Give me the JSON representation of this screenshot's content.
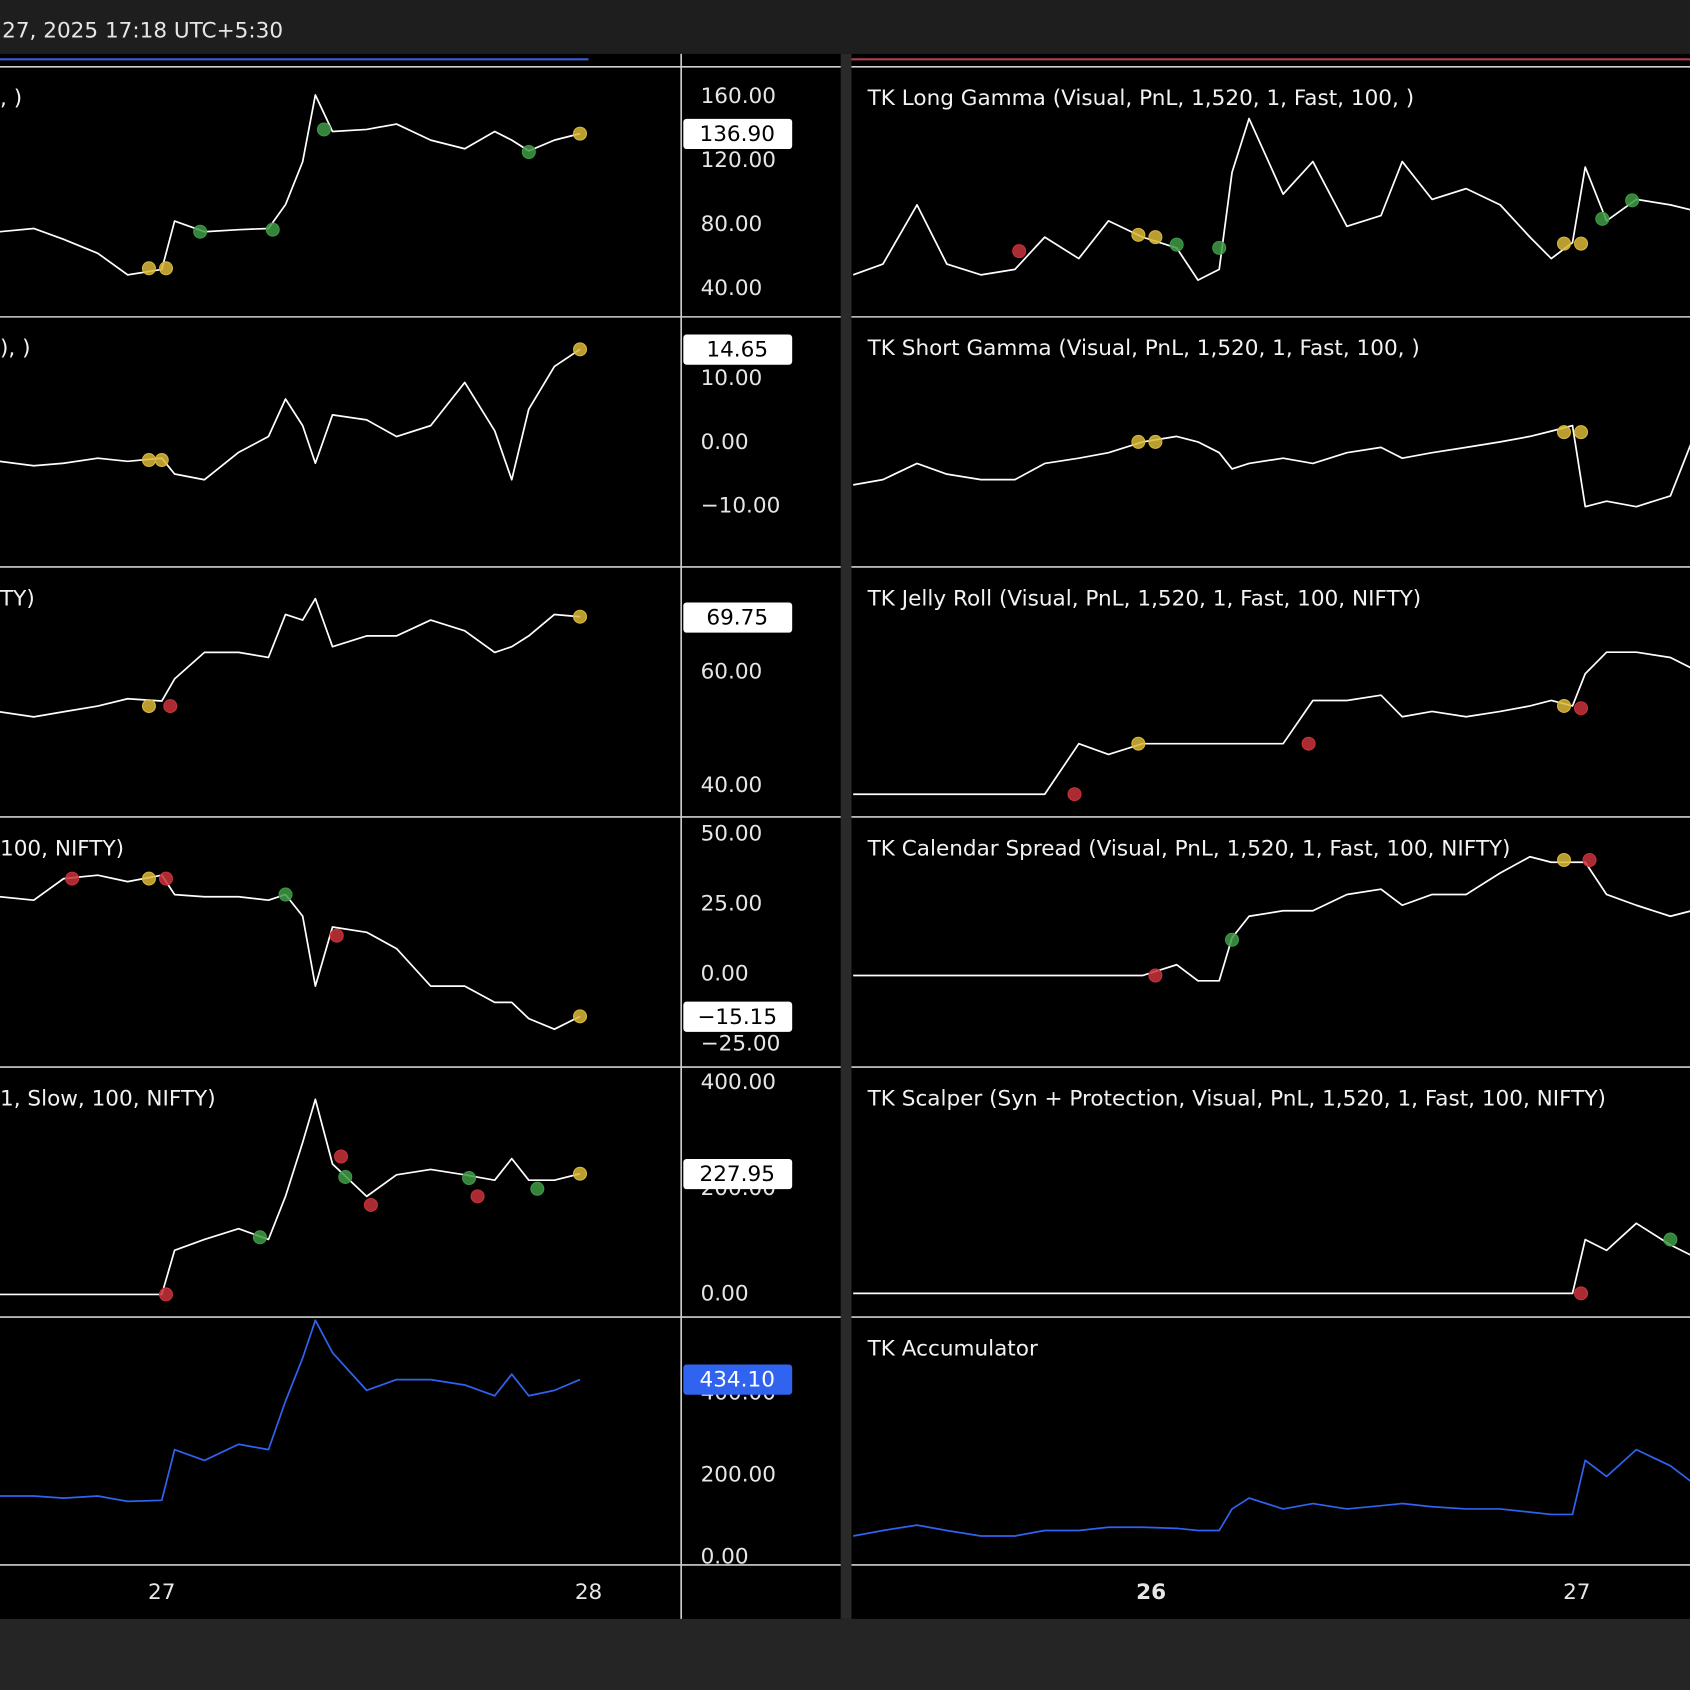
{
  "header": {
    "text": "27, 2025 17:18 UTC+5:30"
  },
  "chart_data": {
    "type": "line",
    "panes": [
      {
        "x": [
          26.62,
          26.7,
          26.77,
          26.85,
          26.92,
          27.0,
          27.03,
          27.1,
          27.18,
          27.25,
          27.29,
          27.33,
          27.36,
          27.4,
          27.48,
          27.55,
          27.63,
          27.71,
          27.78,
          27.82,
          27.86,
          27.92,
          27.98
        ],
        "xlim": [
          26.621,
          28.217
        ],
        "xticks": [
          27,
          28
        ],
        "panels": [
          {
            "title": ", )",
            "color": "#ffffff",
            "values": [
              75.7,
              77.7,
              71.0,
              62.2,
              48.7,
              52.1,
              82.4,
              75.7,
              77.0,
              77.7,
              92.6,
              119.5,
              161.3,
              138.4,
              139.7,
              143.1,
              133.0,
              127.6,
              138.4,
              133.0,
              126.3,
              133.0,
              137.1
            ],
            "ylim": [
              22.4,
              178.9
            ],
            "yticks": [
              {
                "value": 160,
                "label": "160.00"
              },
              {
                "value": 120,
                "label": "120.00"
              },
              {
                "value": 80,
                "label": "80.00"
              },
              {
                "value": 40,
                "label": "40.00"
              }
            ],
            "last_value": {
              "value": 136.9,
              "label": "136.90"
            },
            "markers": [
              {
                "x": 26.97,
                "y": 52.8,
                "color": "#d9b83a"
              },
              {
                "x": 27.01,
                "y": 52.8,
                "color": "#d9b83a"
              },
              {
                "x": 27.09,
                "y": 75.7,
                "color": "#3f9a45"
              },
              {
                "x": 27.26,
                "y": 77.0,
                "color": "#3f9a45"
              },
              {
                "x": 27.38,
                "y": 139.7,
                "color": "#3f9a45"
              },
              {
                "x": 27.86,
                "y": 125.6,
                "color": "#3f9a45"
              },
              {
                "x": 27.98,
                "y": 137.1,
                "color": "#d9b83a"
              }
            ]
          },
          {
            "title": "), )",
            "color": "#ffffff",
            "values": [
              -2.9,
              -3.6,
              -3.2,
              -2.4,
              -2.9,
              -2.4,
              -4.9,
              -5.8,
              -1.5,
              1.0,
              6.9,
              2.7,
              -3.2,
              4.4,
              3.6,
              1.0,
              2.7,
              9.5,
              1.9,
              -5.8,
              5.3,
              12.0,
              14.7
            ],
            "ylim": [
              -19.5,
              19.8
            ],
            "yticks": [
              {
                "value": 10,
                "label": "10.00"
              },
              {
                "value": 0,
                "label": "0.00"
              },
              {
                "value": -10,
                "label": "−10.00"
              }
            ],
            "last_value": {
              "value": 14.65,
              "label": "14.65"
            },
            "markers": [
              {
                "x": 26.97,
                "y": -2.7,
                "color": "#d9b83a"
              },
              {
                "x": 27.0,
                "y": -2.7,
                "color": "#d9b83a"
              },
              {
                "x": 27.98,
                "y": 14.7,
                "color": "#d9b83a"
              }
            ]
          },
          {
            "title": "TY)",
            "color": "#ffffff",
            "values": [
              53.1,
              52.2,
              53.1,
              54.1,
              55.4,
              55.0,
              58.9,
              63.6,
              63.6,
              62.7,
              70.3,
              69.3,
              73.1,
              64.6,
              66.5,
              66.5,
              69.3,
              67.4,
              63.6,
              64.6,
              66.5,
              70.3,
              69.9
            ],
            "ylim": [
              34.5,
              78.7
            ],
            "yticks": [
              {
                "value": 60,
                "label": "60.00"
              },
              {
                "value": 40,
                "label": "40.00"
              }
            ],
            "last_value": {
              "value": 69.75,
              "label": "69.75"
            },
            "markers": [
              {
                "x": 26.97,
                "y": 54.1,
                "color": "#d9b83a"
              },
              {
                "x": 27.02,
                "y": 54.1,
                "color": "#c8323a"
              },
              {
                "x": 27.98,
                "y": 69.9,
                "color": "#d9b83a"
              }
            ]
          },
          {
            "title": "100, NIFTY)",
            "color": "#ffffff",
            "values": [
              27.7,
              26.5,
              34.2,
              35.4,
              33.1,
              35.4,
              28.5,
              27.7,
              27.7,
              26.5,
              28.5,
              20.8,
              -4.2,
              16.9,
              15.0,
              9.2,
              -4.2,
              -4.2,
              -10.0,
              -10.0,
              -15.8,
              -19.6,
              -15.0
            ],
            "ylim": [
              -33.1,
              56.2
            ],
            "yticks": [
              {
                "value": 50,
                "label": "50.00"
              },
              {
                "value": 25,
                "label": "25.00"
              },
              {
                "value": 0,
                "label": "0.00"
              },
              {
                "value": -25,
                "label": "−25.00"
              }
            ],
            "last_value": {
              "value": -15.15,
              "label": "−15.15"
            },
            "markers": [
              {
                "x": 26.79,
                "y": 34.2,
                "color": "#c8323a"
              },
              {
                "x": 26.97,
                "y": 34.2,
                "color": "#d9b83a"
              },
              {
                "x": 27.01,
                "y": 34.2,
                "color": "#c8323a"
              },
              {
                "x": 27.29,
                "y": 28.5,
                "color": "#3f9a45"
              },
              {
                "x": 27.41,
                "y": 13.8,
                "color": "#c8323a"
              },
              {
                "x": 27.98,
                "y": -15.0,
                "color": "#d9b83a"
              }
            ]
          },
          {
            "title": "1, Slow, 100, NIFTY)",
            "color": "#ffffff",
            "values": [
              0,
              0,
              0,
              0,
              0,
              0,
              83.7,
              104.1,
              124.5,
              104.1,
              185.7,
              287.8,
              369.4,
              246.9,
              185.7,
              226.5,
              236.7,
              226.5,
              216.3,
              257.1,
              216.3,
              216.3,
              228.6
            ],
            "ylim": [
              -42.9,
              430.6
            ],
            "yticks": [
              {
                "value": 400,
                "label": "400.00"
              },
              {
                "value": 200,
                "label": "200.00"
              },
              {
                "value": 0,
                "label": "0.00"
              }
            ],
            "last_value": {
              "value": 227.95,
              "label": "227.95"
            },
            "markers": [
              {
                "x": 27.01,
                "y": 0,
                "color": "#c8323a"
              },
              {
                "x": 27.23,
                "y": 108.2,
                "color": "#3f9a45"
              },
              {
                "x": 27.42,
                "y": 261.2,
                "color": "#c8323a"
              },
              {
                "x": 27.43,
                "y": 222.4,
                "color": "#3f9a45"
              },
              {
                "x": 27.49,
                "y": 169.4,
                "color": "#c8323a"
              },
              {
                "x": 27.72,
                "y": 220.4,
                "color": "#3f9a45"
              },
              {
                "x": 27.74,
                "y": 185.7,
                "color": "#c8323a"
              },
              {
                "x": 27.88,
                "y": 200,
                "color": "#3f9a45"
              },
              {
                "x": 27.98,
                "y": 228.6,
                "color": "#d9b83a"
              }
            ]
          },
          {
            "color": "#2f63f0",
            "values": [
              150,
              150,
              144.7,
              150,
              136.8,
              139.5,
              263.2,
              236.8,
              276.3,
              263.2,
              381.6,
              486.8,
              578.9,
              500,
              407.9,
              434.2,
              434.2,
              421.1,
              394.7,
              447.4,
              394.7,
              407.9,
              434.2
            ],
            "ylim": [
              -18.4,
              586.8
            ],
            "yticks": [
              {
                "value": 400,
                "label": "400.00"
              },
              {
                "value": 200,
                "label": "200.00"
              },
              {
                "value": 0,
                "label": "0.00"
              }
            ],
            "last_value": {
              "value": 434.1,
              "label": "434.10"
            }
          }
        ]
      },
      {
        "x": [
          25.3,
          25.37,
          25.45,
          25.52,
          25.6,
          25.68,
          25.75,
          25.83,
          25.9,
          25.98,
          26.06,
          26.11,
          26.16,
          26.19,
          26.23,
          26.31,
          26.38,
          26.46,
          26.54,
          26.59,
          26.66,
          26.74,
          26.82,
          26.89,
          26.94,
          26.99,
          27.02,
          27.07,
          27.14,
          27.22,
          27.27
        ],
        "xlim": [
          25.296,
          27.266
        ],
        "xticks": [
          26,
          27
        ],
        "panels": [
          {
            "title": "TK Long Gamma (Visual, PnL, 1,520, 1, Fast, 100, )",
            "color": "#ffffff",
            "ylim": [
              0,
              100
            ],
            "values": [
              16.8,
              21.1,
              44.8,
              21.1,
              16.8,
              19.0,
              31.9,
              23.3,
              38.4,
              31.9,
              27.6,
              14.7,
              19.0,
              57.8,
              79.3,
              49.1,
              62.1,
              36.2,
              40.5,
              62.1,
              47.0,
              51.3,
              44.8,
              31.9,
              23.3,
              29.7,
              59.9,
              38.4,
              47.0,
              44.8,
              42.7
            ],
            "markers": [
              {
                "x": 25.69,
                "y": 26.3,
                "color": "#c8323a"
              },
              {
                "x": 25.97,
                "y": 32.8,
                "color": "#d9b83a"
              },
              {
                "x": 26.01,
                "y": 31.9,
                "color": "#d9b83a"
              },
              {
                "x": 26.06,
                "y": 28.9,
                "color": "#3f9a45"
              },
              {
                "x": 26.16,
                "y": 27.6,
                "color": "#3f9a45"
              },
              {
                "x": 26.97,
                "y": 29.3,
                "color": "#d9b83a"
              },
              {
                "x": 27.01,
                "y": 29.3,
                "color": "#d9b83a"
              },
              {
                "x": 27.06,
                "y": 39.2,
                "color": "#3f9a45"
              },
              {
                "x": 27.13,
                "y": 46.6,
                "color": "#3f9a45"
              }
            ]
          },
          {
            "title": "TK Short Gamma (Visual, PnL, 1,520, 1, Fast, 100, )",
            "color": "#ffffff",
            "ylim": [
              0,
              100
            ],
            "values": [
              32.8,
              34.9,
              41.4,
              37.1,
              34.9,
              34.9,
              41.4,
              43.5,
              45.7,
              50.0,
              52.2,
              50.0,
              45.7,
              39.2,
              41.4,
              43.5,
              41.4,
              45.7,
              47.8,
              43.5,
              45.7,
              47.8,
              50.0,
              52.2,
              54.3,
              56.5,
              24.1,
              26.3,
              24.1,
              28.4,
              50.0
            ],
            "markers": [
              {
                "x": 25.97,
                "y": 50.0,
                "color": "#d9b83a"
              },
              {
                "x": 26.01,
                "y": 50.0,
                "color": "#d9b83a"
              },
              {
                "x": 26.97,
                "y": 53.9,
                "color": "#d9b83a"
              },
              {
                "x": 27.01,
                "y": 53.9,
                "color": "#d9b83a"
              }
            ]
          },
          {
            "title": "TK Jelly Roll (Visual, PnL, 1,520, 1, Fast, 100, NIFTY)",
            "color": "#ffffff",
            "ylim": [
              0,
              100
            ],
            "values": [
              9.1,
              9.1,
              9.1,
              9.1,
              9.1,
              9.1,
              9.1,
              29.3,
              25.0,
              29.3,
              29.3,
              29.3,
              29.3,
              29.3,
              29.3,
              29.3,
              46.6,
              46.6,
              48.7,
              40.1,
              42.2,
              40.1,
              42.2,
              44.4,
              46.6,
              44.4,
              57.3,
              65.9,
              65.9,
              63.8,
              59.5
            ],
            "markers": [
              {
                "x": 25.82,
                "y": 9.1,
                "color": "#c8323a"
              },
              {
                "x": 25.97,
                "y": 29.3,
                "color": "#d9b83a"
              },
              {
                "x": 26.37,
                "y": 29.3,
                "color": "#c8323a"
              },
              {
                "x": 26.97,
                "y": 44.4,
                "color": "#d9b83a"
              },
              {
                "x": 27.01,
                "y": 43.5,
                "color": "#c8323a"
              }
            ]
          },
          {
            "title": "TK Calendar Spread (Visual, PnL, 1,520, 1, Fast, 100, NIFTY)",
            "color": "#ffffff",
            "ylim": [
              0,
              100
            ],
            "values": [
              36.6,
              36.6,
              36.6,
              36.6,
              36.6,
              36.6,
              36.6,
              36.6,
              36.6,
              36.6,
              40.9,
              34.5,
              34.5,
              51.7,
              60.3,
              62.5,
              62.5,
              69.0,
              71.1,
              64.7,
              69.0,
              69.0,
              77.6,
              84.1,
              81.9,
              81.9,
              81.9,
              69.0,
              64.7,
              60.3,
              62.5
            ],
            "markers": [
              {
                "x": 26.01,
                "y": 36.6,
                "color": "#c8323a"
              },
              {
                "x": 26.19,
                "y": 50.9,
                "color": "#3f9a45"
              },
              {
                "x": 26.97,
                "y": 82.8,
                "color": "#d9b83a"
              },
              {
                "x": 27.03,
                "y": 82.8,
                "color": "#c8323a"
              }
            ]
          },
          {
            "title": "TK Scalper (Syn + Protection, Visual, PnL, 1,520, 1, Fast, 100, NIFTY)",
            "color": "#ffffff",
            "ylim": [
              0,
              100
            ],
            "values": [
              9.5,
              9.5,
              9.5,
              9.5,
              9.5,
              9.5,
              9.5,
              9.5,
              9.5,
              9.5,
              9.5,
              9.5,
              9.5,
              9.5,
              9.5,
              9.5,
              9.5,
              9.5,
              9.5,
              9.5,
              9.5,
              9.5,
              9.5,
              9.5,
              9.5,
              9.5,
              31.0,
              26.7,
              37.5,
              28.9,
              24.6
            ],
            "markers": [
              {
                "x": 27.01,
                "y": 9.5,
                "color": "#c8323a"
              },
              {
                "x": 27.22,
                "y": 31.0,
                "color": "#3f9a45"
              }
            ]
          },
          {
            "title": "TK Accumulator",
            "color": "#2f63f0",
            "ylim": [
              0,
              100
            ],
            "values": [
              11.7,
              13.9,
              16.1,
              13.9,
              11.7,
              11.7,
              13.9,
              13.9,
              15.2,
              15.2,
              14.8,
              13.9,
              13.9,
              22.6,
              27.0,
              22.6,
              24.8,
              22.6,
              23.9,
              24.8,
              23.5,
              22.6,
              22.6,
              21.3,
              20.4,
              20.4,
              42.2,
              35.7,
              46.5,
              40.0,
              33.5
            ]
          }
        ]
      }
    ]
  }
}
